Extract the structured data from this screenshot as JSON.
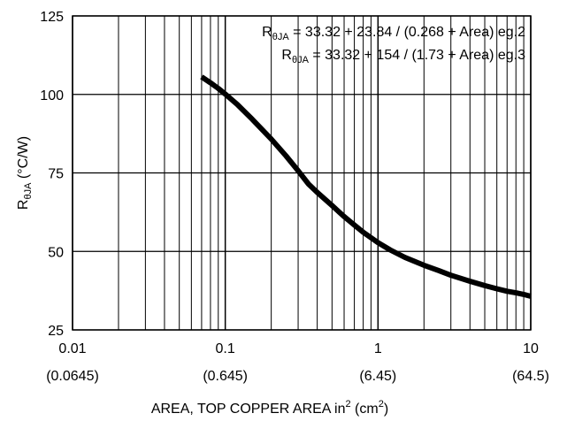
{
  "chart_data": {
    "type": "line",
    "x_scale": "log",
    "xlim": [
      0.01,
      10
    ],
    "ylim": [
      25,
      125
    ],
    "grid": true,
    "x_ticks": [
      {
        "value": 0.01,
        "label": "0.01",
        "sublabel": "(0.0645)"
      },
      {
        "value": 0.1,
        "label": "0.1",
        "sublabel": "(0.645)"
      },
      {
        "value": 1,
        "label": "1",
        "sublabel": "(6.45)"
      },
      {
        "value": 10,
        "label": "10",
        "sublabel": "(64.5)"
      }
    ],
    "y_ticks": [
      {
        "value": 25,
        "label": "25"
      },
      {
        "value": 50,
        "label": "50"
      },
      {
        "value": 75,
        "label": "75"
      },
      {
        "value": 100,
        "label": "100"
      },
      {
        "value": 125,
        "label": "125"
      }
    ],
    "xlabel": {
      "main": "AREA, TOP COPPER AREA in",
      "sup1": "2",
      "mid": " (cm",
      "sup2": "2",
      "end": ")"
    },
    "ylabel": {
      "main": "R",
      "sub": "θJA",
      "rest": " (°C/W)"
    },
    "annotations": [
      {
        "r": "R",
        "sub": "θJA",
        "text": " = 33.32 + 23.84 / (0.268 + Area) eg.2"
      },
      {
        "r": "R",
        "sub": "θJA",
        "text": " = 33.32 + 154 / (1.73 + Area) eg.3"
      }
    ],
    "series": [
      {
        "color": "#000000",
        "points": [
          [
            0.07,
            105.6
          ],
          [
            0.08,
            103.7
          ],
          [
            0.09,
            101.9
          ],
          [
            0.1,
            100.1
          ],
          [
            0.12,
            96.8
          ],
          [
            0.15,
            92.1
          ],
          [
            0.2,
            85.8
          ],
          [
            0.25,
            80.4
          ],
          [
            0.3,
            75.7
          ],
          [
            0.35,
            71.5
          ],
          [
            0.4,
            68.8
          ],
          [
            0.5,
            64.6
          ],
          [
            0.6,
            61.1
          ],
          [
            0.7,
            58.4
          ],
          [
            0.8,
            56.1
          ],
          [
            1.0,
            52.8
          ],
          [
            1.2,
            50.5
          ],
          [
            1.5,
            48.1
          ],
          [
            2.0,
            45.6
          ],
          [
            2.5,
            43.9
          ],
          [
            3.0,
            42.4
          ],
          [
            4.0,
            40.5
          ],
          [
            5.0,
            39.1
          ],
          [
            6.0,
            38.1
          ],
          [
            7.0,
            37.3
          ],
          [
            8.0,
            36.8
          ],
          [
            9.0,
            36.3
          ],
          [
            10.0,
            35.7
          ]
        ]
      }
    ]
  }
}
